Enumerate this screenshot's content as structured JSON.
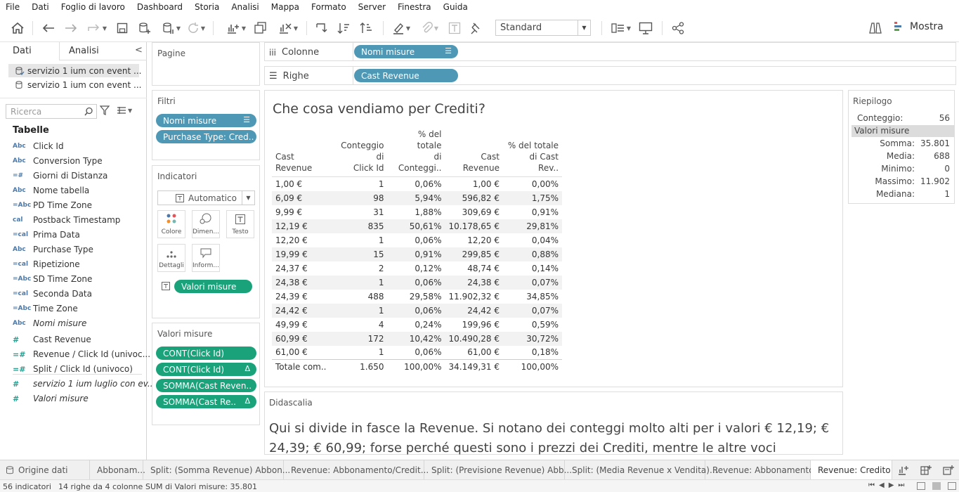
{
  "menu": [
    "File",
    "Dati",
    "Foglio di lavoro",
    "Dashboard",
    "Storia",
    "Analisi",
    "Mappa",
    "Formato",
    "Server",
    "Finestra",
    "Guida"
  ],
  "toolbar": {
    "standard": "Standard",
    "mostra": "Mostra"
  },
  "data_pane": {
    "tab_dati": "Dati",
    "tab_analisi": "Analisi",
    "datasources": [
      "servizio 1 ium con event ...",
      "servizio 1 ium con event ..."
    ],
    "search_placeholder": "Ricerca",
    "tables_header": "Tabelle",
    "fields": [
      {
        "type": "Abc",
        "name": "Click Id"
      },
      {
        "type": "Abc",
        "name": "Conversion Type"
      },
      {
        "type": "=#",
        "name": "Giorni di Distanza"
      },
      {
        "type": "Abc",
        "name": "Nome tabella"
      },
      {
        "type": "=Abc",
        "name": "PD Time Zone"
      },
      {
        "type": "cal",
        "name": "Postback Timestamp"
      },
      {
        "type": "=cal",
        "name": "Prima Data"
      },
      {
        "type": "Abc",
        "name": "Purchase Type"
      },
      {
        "type": "=cal",
        "name": "Ripetizione"
      },
      {
        "type": "=Abc",
        "name": "SD Time Zone"
      },
      {
        "type": "=cal",
        "name": "Seconda Data"
      },
      {
        "type": "=Abc",
        "name": "Time Zone"
      },
      {
        "type": "Abc",
        "name": "Nomi misure",
        "italic": true
      }
    ],
    "measures": [
      {
        "type": "#",
        "name": "Cast Revenue"
      },
      {
        "type": "=#",
        "name": "Revenue / Click Id (univoc..."
      },
      {
        "type": "=#",
        "name": "Split / Click Id (univoco)"
      },
      {
        "type": "#",
        "name": "servizio 1 ium luglio con ev...",
        "italic": true
      },
      {
        "type": "#",
        "name": "Valori misure",
        "italic": true
      }
    ]
  },
  "shelves": {
    "pagine": "Pagine",
    "filtri": "Filtri",
    "filters": [
      "Nomi misure",
      "Purchase Type: Cred.."
    ],
    "indicatori": "Indicatori",
    "marks_type": "Automatico",
    "marks_buttons": [
      "Colore",
      "Dimen...",
      "Testo",
      "Dettagli",
      "Inform..."
    ],
    "marks_pill": "Valori misure",
    "valori_misure": "Valori misure",
    "measure_pills": [
      "CONT(Click Id)",
      "CONT(Click Id)",
      "SOMMA(Cast Reven..",
      "SOMMA(Cast Re.."
    ],
    "colonne": "Colonne",
    "righe": "Righe",
    "col_pill": "Nomi misure",
    "row_pill": "Cast Revenue"
  },
  "viz": {
    "title": "Che cosa vendiamo per Crediti?",
    "headers": [
      [
        "Cast",
        "Revenue"
      ],
      [
        "Conteggio di",
        "Click Id"
      ],
      [
        "% del totale",
        "di Conteggi.."
      ],
      [
        "Cast",
        "Revenue"
      ],
      [
        "% del totale",
        "di Cast Rev.."
      ]
    ],
    "rows": [
      [
        "1,00 €",
        "1",
        "0,06%",
        "1,00 €",
        "0,00%"
      ],
      [
        "6,09 €",
        "98",
        "5,94%",
        "596,82 €",
        "1,75%"
      ],
      [
        "9,99 €",
        "31",
        "1,88%",
        "309,69 €",
        "0,91%"
      ],
      [
        "12,19 €",
        "835",
        "50,61%",
        "10.178,65 €",
        "29,81%"
      ],
      [
        "12,20 €",
        "1",
        "0,06%",
        "12,20 €",
        "0,04%"
      ],
      [
        "19,99 €",
        "15",
        "0,91%",
        "299,85 €",
        "0,88%"
      ],
      [
        "24,37 €",
        "2",
        "0,12%",
        "48,74 €",
        "0,14%"
      ],
      [
        "24,38 €",
        "1",
        "0,06%",
        "24,38 €",
        "0,07%"
      ],
      [
        "24,39 €",
        "488",
        "29,58%",
        "11.902,32 €",
        "34,85%"
      ],
      [
        "24,42 €",
        "1",
        "0,06%",
        "24,42 €",
        "0,07%"
      ],
      [
        "49,99 €",
        "4",
        "0,24%",
        "199,96 €",
        "0,59%"
      ],
      [
        "60,99 €",
        "172",
        "10,42%",
        "10.490,28 €",
        "30,72%"
      ],
      [
        "61,00 €",
        "1",
        "0,06%",
        "61,00 €",
        "0,18%"
      ]
    ],
    "total": [
      "Totale com..",
      "1.650",
      "100,00%",
      "34.149,31 €",
      "100,00%"
    ]
  },
  "summary": {
    "title": "Riepilogo",
    "count_label": "Conteggio:",
    "count_value": "56",
    "section": "Valori misure",
    "stats": [
      {
        "label": "Somma:",
        "value": "35.801"
      },
      {
        "label": "Media:",
        "value": "688"
      },
      {
        "label": "Minimo:",
        "value": "0"
      },
      {
        "label": "Massimo:",
        "value": "11.902"
      },
      {
        "label": "Mediana:",
        "value": "1"
      }
    ]
  },
  "caption": {
    "header": "Didascalia",
    "text": "Qui si divide in fasce la Revenue. Si notano dei conteggi molto alti per i valori € 12,19; € 24,39; € 60,99;  forse perché questi sono i prezzi dei Crediti, mentre le altre voci"
  },
  "sheet_tabs": [
    "Origine dati",
    "Abbonam...",
    "Split: (Somma Revenue) Abbon...",
    "Revenue: Abbonamento/Credit...",
    "Split: (Previsione Revenue) Abb...",
    "Split: (Media Revenue x Vendita)...",
    "Revenue: Abbonamento",
    "Revenue: Credito"
  ],
  "status": {
    "indicators": "56 indicatori",
    "rows_cols": "14 righe da 4 colonne",
    "sum": "SUM di Valori misure: 35.801"
  }
}
